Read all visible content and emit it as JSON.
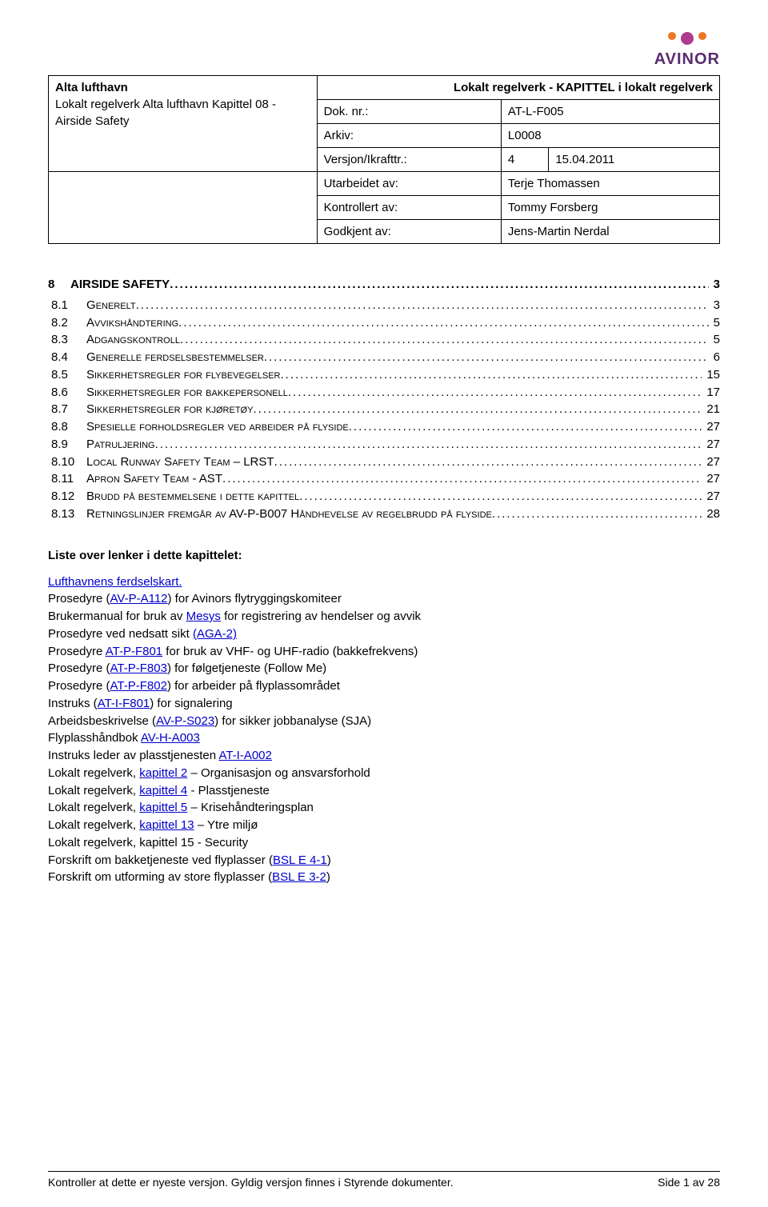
{
  "logo": {
    "text": "AVINOR",
    "text_color": "#5a2d6e",
    "dots": [
      {
        "color": "#ee7622",
        "size": 10
      },
      {
        "color": "#af3b8e",
        "size": 16
      },
      {
        "color": "#ee7622",
        "size": 10
      }
    ]
  },
  "header_title": "Lokalt regelverk - KAPITTEL i lokalt regelverk",
  "left_block": {
    "l1": "Alta lufthavn",
    "l2": "Lokalt regelverk Alta lufthavn Kapittel 08 - Airside Safety"
  },
  "meta_rows": [
    {
      "k": "Dok. nr.:",
      "v": "AT-L-F005"
    },
    {
      "k": "Arkiv:",
      "v": "L0008"
    },
    {
      "k": "Versjon/Ikrafttr.:",
      "v1": "4",
      "v2": "15.04.2011"
    },
    {
      "k": "Utarbeidet av:",
      "v": "Terje Thomassen"
    },
    {
      "k": "Kontrollert av:",
      "v": "Tommy Forsberg"
    },
    {
      "k": "Godkjent av:",
      "v": "Jens-Martin Nerdal"
    }
  ],
  "section": {
    "num": "8",
    "title": "AIRSIDE SAFETY",
    "page": "3"
  },
  "toc": [
    {
      "n": "8.1",
      "t": "Generelt",
      "p": "3"
    },
    {
      "n": "8.2",
      "t": "Avvikshåndtering",
      "p": "5"
    },
    {
      "n": "8.3",
      "t": "Adgangskontroll",
      "p": "5"
    },
    {
      "n": "8.4",
      "t": "Generelle ferdselsbestemmelser",
      "p": "6"
    },
    {
      "n": "8.5",
      "t": "Sikkerhetsregler for flybevegelser",
      "p": "15"
    },
    {
      "n": "8.6",
      "t": "Sikkerhetsregler for bakkepersonell",
      "p": "17"
    },
    {
      "n": "8.7",
      "t": "Sikkerhetsregler for kjøretøy",
      "p": "21"
    },
    {
      "n": "8.8",
      "t": "Spesielle forholdsregler ved arbeider på flyside",
      "p": "27"
    },
    {
      "n": "8.9",
      "t": "Patruljering",
      "p": "27"
    },
    {
      "n": "8.10",
      "t": "Local Runway Safety Team – LRST",
      "p": "27"
    },
    {
      "n": "8.11",
      "t": "Apron Safety Team - AST",
      "p": "27"
    },
    {
      "n": "8.12",
      "t": "Brudd på bestemmelsene i dette kapittel",
      "p": "27"
    },
    {
      "n": "8.13",
      "t": "Retningslinjer fremgår av AV-P-B007 Håndhevelse av regelbrudd på flyside",
      "p": "28"
    }
  ],
  "links_title": "Liste over lenker i dette kapittelet:",
  "links": [
    {
      "pre": "",
      "a": "Lufthavnens ferdselskart.",
      "post": ""
    },
    {
      "pre": "Prosedyre (",
      "a": "AV-P-A112",
      "post": ") for Avinors flytryggingskomiteer"
    },
    {
      "pre": "Brukermanual for bruk av ",
      "a": "Mesys",
      "post": " for registrering av hendelser og avvik"
    },
    {
      "pre": "Prosedyre ved nedsatt sikt ",
      "a": "(AGA-2)",
      "post": ""
    },
    {
      "pre": "Prosedyre ",
      "a": "AT-P-F801",
      "post": " for bruk av VHF- og UHF-radio (bakkefrekvens)"
    },
    {
      "pre": "Prosedyre (",
      "a": "AT-P-F803",
      "post": ") for følgetjeneste (Follow Me)"
    },
    {
      "pre": "Prosedyre (",
      "a": "AT-P-F802",
      "post": ") for arbeider på flyplassområdet"
    },
    {
      "pre": "Instruks (",
      "a": "AT-I-F801",
      "post": ") for signalering"
    },
    {
      "pre": "Arbeidsbeskrivelse (",
      "a": "AV-P-S023",
      "post": ") for sikker jobbanalyse (SJA)"
    },
    {
      "pre": "Flyplasshåndbok ",
      "a": "AV-H-A003",
      "post": ""
    },
    {
      "pre": "Instruks leder av plasstjenesten ",
      "a": "AT-I-A002",
      "post": ""
    },
    {
      "pre": "Lokalt regelverk, ",
      "a": "kapittel 2",
      "post": " – Organisasjon og ansvarsforhold"
    },
    {
      "pre": "Lokalt regelverk, ",
      "a": "kapittel 4",
      "post": " - Plasstjeneste"
    },
    {
      "pre": "Lokalt regelverk, ",
      "a": "kapittel 5",
      "post": " – Krisehåndteringsplan"
    },
    {
      "pre": "Lokalt regelverk, ",
      "a": "kapittel 13",
      "post": " – Ytre miljø"
    },
    {
      "pre": "Lokalt regelverk, kapittel 15 - Security",
      "a": "",
      "post": ""
    },
    {
      "pre": "Forskrift om bakketjeneste ved flyplasser (",
      "a": "BSL E 4-1",
      "post": ")"
    },
    {
      "pre": "Forskrift om utforming av store flyplasser (",
      "a": "BSL E 3-2",
      "post": ")"
    }
  ],
  "footer": {
    "left": "Kontroller at dette er nyeste versjon. Gyldig versjon finnes i Styrende dokumenter.",
    "right": "Side 1 av 28"
  }
}
